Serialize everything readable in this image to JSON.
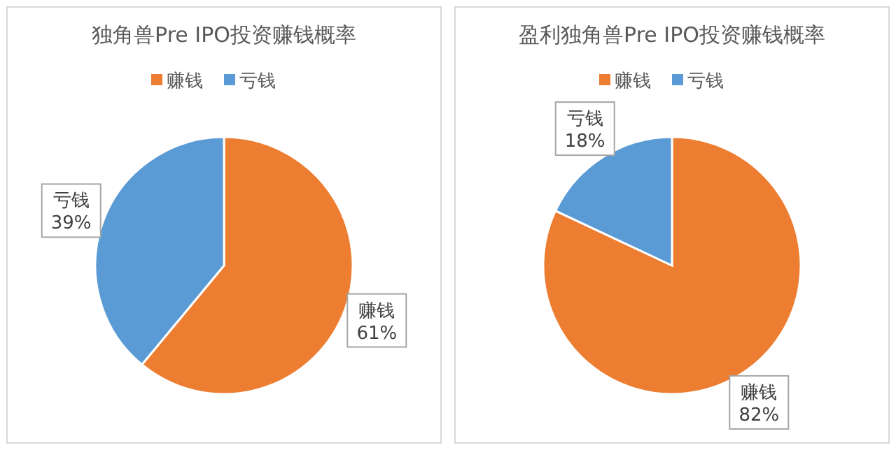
{
  "chart_data": [
    {
      "type": "pie",
      "title": "独角兽Pre IPO投资赚钱概率",
      "categories": [
        "赚钱",
        "亏钱"
      ],
      "values": [
        61,
        39
      ],
      "colors": [
        "#ed7d31",
        "#5b9bd5"
      ],
      "value_labels": [
        "61%",
        "39%"
      ],
      "legend": "top"
    },
    {
      "type": "pie",
      "title": "盈利独角兽Pre IPO投资赚钱概率",
      "categories": [
        "赚钱",
        "亏钱"
      ],
      "values": [
        82,
        18
      ],
      "colors": [
        "#ed7d31",
        "#5b9bd5"
      ],
      "value_labels": [
        "82%",
        "18%"
      ],
      "legend": "top"
    }
  ]
}
